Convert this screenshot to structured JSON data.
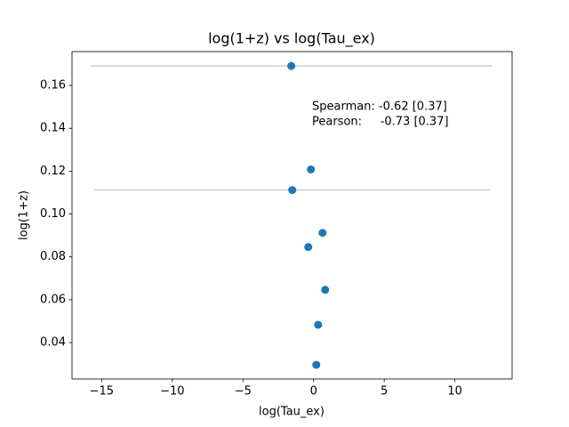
{
  "chart_data": {
    "type": "scatter",
    "title": "log(1+z) vs log(Tau_ex)",
    "x_label": "log(Tau_ex)",
    "y_label": "log(1+z)",
    "annotations": [
      "Spearman: -0.62 [0.37]",
      "Pearson:     -0.73 [0.37]"
    ],
    "x": [
      -1.58,
      -0.19,
      -1.51,
      0.63,
      -0.38,
      0.82,
      0.32,
      0.19
    ],
    "values": [
      0.1691,
      0.1208,
      0.1112,
      0.0912,
      0.0846,
      0.0646,
      0.0483,
      0.0296
    ],
    "xerr": [
      14.2,
      null,
      14.0,
      null,
      null,
      null,
      null,
      null
    ],
    "color": "#1f77b4",
    "error_color": "#cccccc",
    "xlim": [
      -17.1,
      14.05
    ],
    "ylim": [
      0.023,
      0.1758
    ],
    "xticks": [
      {
        "value": -15,
        "label": "−15"
      },
      {
        "value": -10,
        "label": "−10"
      },
      {
        "value": -5,
        "label": "−5"
      },
      0,
      5,
      10
    ],
    "yticks": [
      0.04,
      0.06,
      0.08,
      {
        "value": 0.1,
        "label": "0.10"
      },
      0.12,
      0.14,
      0.16
    ],
    "grid": false
  }
}
